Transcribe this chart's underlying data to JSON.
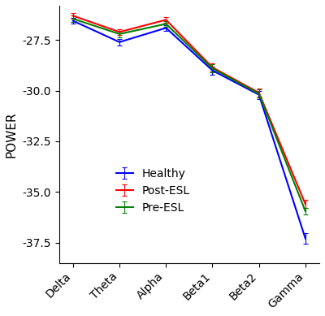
{
  "categories": [
    "Delta",
    "Theta",
    "Alpha",
    "Beta1",
    "Beta2",
    "Gamma"
  ],
  "series": {
    "Healthy": {
      "color": "#0000ff",
      "values": [
        -26.55,
        -27.6,
        -26.9,
        -29.0,
        -30.2,
        -37.3
      ],
      "errors": [
        0.15,
        0.15,
        0.15,
        0.2,
        0.2,
        0.25
      ]
    },
    "Post-ESL": {
      "color": "#ff0000",
      "values": [
        -26.3,
        -27.1,
        -26.5,
        -28.85,
        -30.1,
        -35.6
      ],
      "errors": [
        0.15,
        0.15,
        0.15,
        0.2,
        0.2,
        0.2
      ]
    },
    "Pre-ESL": {
      "color": "#008000",
      "values": [
        -26.45,
        -27.2,
        -26.7,
        -28.9,
        -30.15,
        -35.95
      ],
      "errors": [
        0.15,
        0.15,
        0.15,
        0.2,
        0.2,
        0.15
      ]
    }
  },
  "ylabel": "POWER",
  "ylim": [
    -38.5,
    -25.8
  ],
  "yticks": [
    -27.5,
    -30.0,
    -32.5,
    -35.0,
    -37.5
  ],
  "legend_order": [
    "Healthy",
    "Post-ESL",
    "Pre-ESL"
  ],
  "background_color": "#ffffff",
  "linewidth": 1.5,
  "capsize": 2.5
}
